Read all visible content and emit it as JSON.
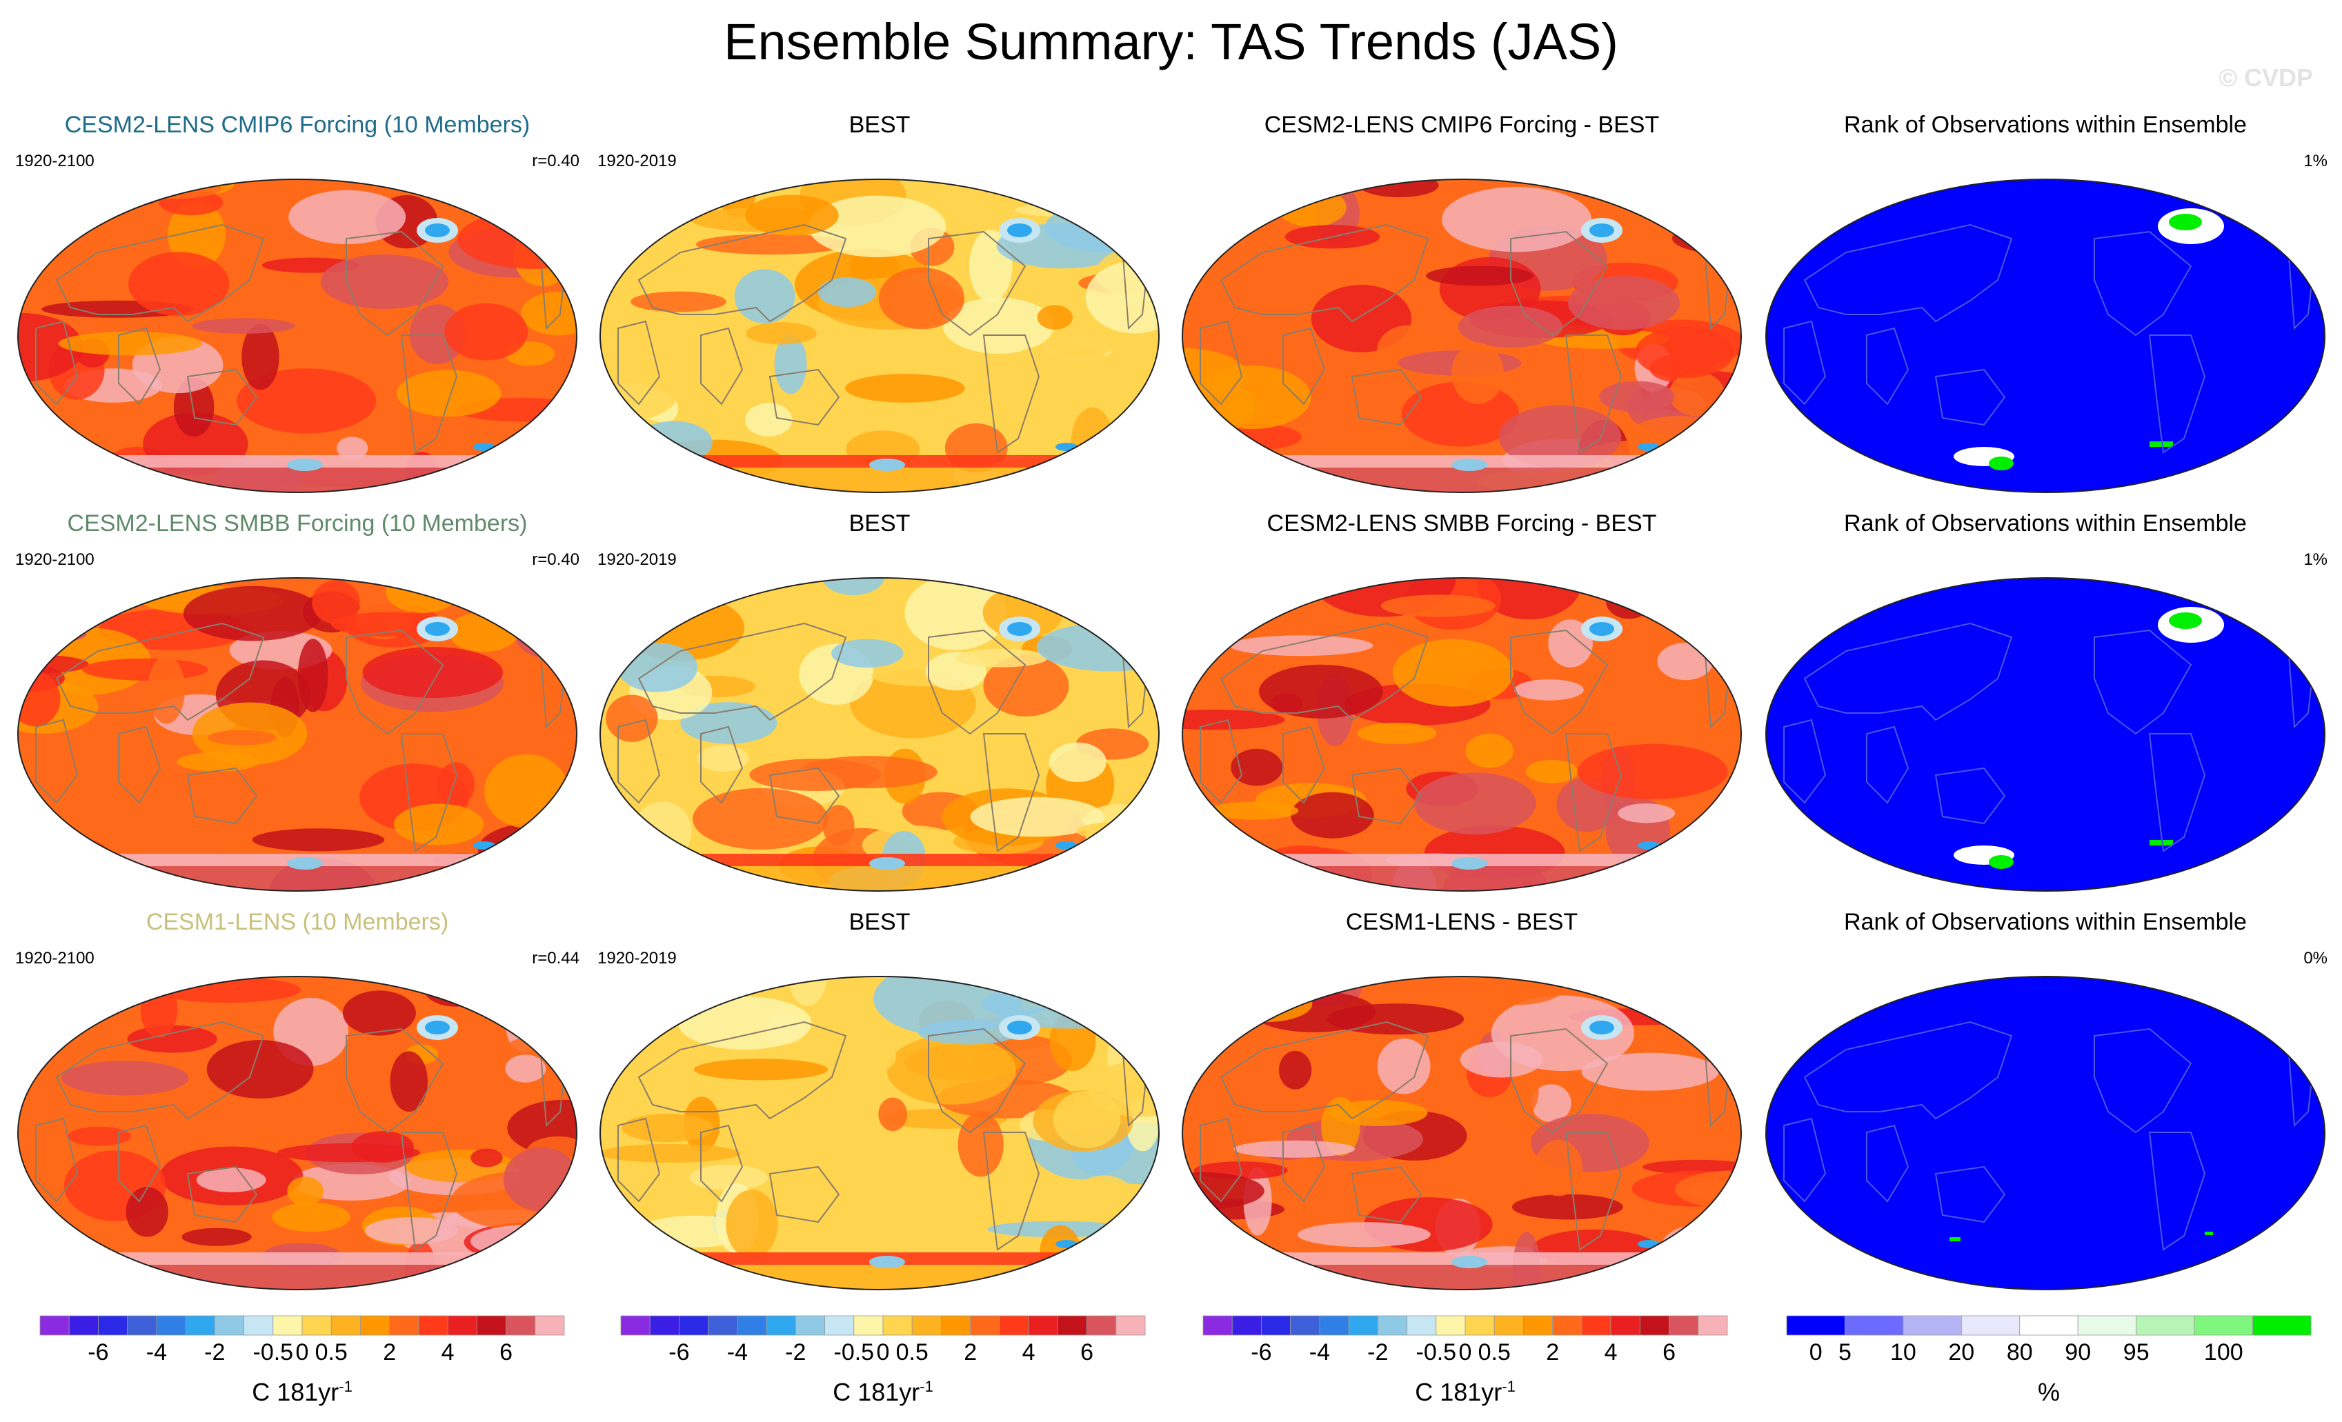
{
  "title": "Ensemble Summary: TAS Trends (JAS)",
  "watermark": "© CVDP",
  "panels": [
    {
      "title": "CESM2-LENS CMIP6 Forcing (10 Members)",
      "title_color": "#1e6b8a",
      "left": "1920-2100",
      "right": "r=0.40",
      "kind": "model",
      "variant": 0
    },
    {
      "title": "BEST",
      "title_color": "#000000",
      "left": "1920-2019",
      "right": "",
      "kind": "obs",
      "variant": 1
    },
    {
      "title": "CESM2-LENS CMIP6 Forcing - BEST",
      "title_color": "#000000",
      "left": "",
      "right": "",
      "kind": "diff",
      "variant": 2
    },
    {
      "title": "Rank of Observations within Ensemble",
      "title_color": "#000000",
      "left": "",
      "right": "1%",
      "kind": "rank",
      "variant": 3
    },
    {
      "title": "CESM2-LENS SMBB Forcing (10 Members)",
      "title_color": "#5f8a6a",
      "left": "1920-2100",
      "right": "r=0.40",
      "kind": "model",
      "variant": 4
    },
    {
      "title": "BEST",
      "title_color": "#000000",
      "left": "1920-2019",
      "right": "",
      "kind": "obs",
      "variant": 5
    },
    {
      "title": "CESM2-LENS SMBB Forcing - BEST",
      "title_color": "#000000",
      "left": "",
      "right": "",
      "kind": "diff",
      "variant": 6
    },
    {
      "title": "Rank of Observations within Ensemble",
      "title_color": "#000000",
      "left": "",
      "right": "1%",
      "kind": "rank",
      "variant": 7
    },
    {
      "title": "CESM1-LENS (10 Members)",
      "title_color": "#c8c07a",
      "left": "1920-2100",
      "right": "r=0.44",
      "kind": "model",
      "variant": 8
    },
    {
      "title": "BEST",
      "title_color": "#000000",
      "left": "1920-2019",
      "right": "",
      "kind": "obs",
      "variant": 9
    },
    {
      "title": "CESM1-LENS - BEST",
      "title_color": "#000000",
      "left": "",
      "right": "",
      "kind": "diff",
      "variant": 10
    },
    {
      "title": "Rank of Observations within Ensemble",
      "title_color": "#000000",
      "left": "",
      "right": "0%",
      "kind": "rank",
      "variant": 11
    }
  ],
  "colorbars": {
    "trend": {
      "colors": [
        "#8a2be2",
        "#3a1ee6",
        "#2a2ae8",
        "#3d5fd8",
        "#2f7fe6",
        "#30a8ef",
        "#8ecae6",
        "#c6e6f4",
        "#fdf5a8",
        "#ffd54f",
        "#ffb21f",
        "#ff9800",
        "#ff6a1a",
        "#ff3b1a",
        "#ea1f1f",
        "#c4121a",
        "#d9545c",
        "#f7b2b8"
      ],
      "tick_labels": [
        "-6",
        "-4",
        "-2",
        "-0.5",
        "0",
        "0.5",
        "2",
        "4",
        "6"
      ],
      "tick_boundaries": [
        2,
        4,
        6,
        8,
        9,
        10,
        12,
        14,
        16
      ],
      "units": "C 181yr",
      "units_sup": "-1"
    },
    "rank": {
      "colors": [
        "#0000ff",
        "#6b6bff",
        "#b5b5f5",
        "#e8e8fc",
        "#ffffff",
        "#e8fbe8",
        "#b6f5b6",
        "#7ff77f",
        "#00ee00"
      ],
      "tick_labels": [
        "0",
        "5",
        "10",
        "20",
        "80",
        "90",
        "95",
        "100"
      ],
      "tick_boundaries": [
        0.5,
        1,
        2,
        3,
        4,
        5,
        6,
        7.5
      ],
      "units": "%"
    }
  },
  "chart_data": [
    {
      "type": "heatmap",
      "title": "CESM2-LENS CMIP6 Forcing (10 Members)",
      "period": "1920-2100",
      "pattern_correlation": 0.4,
      "units": "C 181yr-1",
      "levels": [
        -8,
        -7,
        -6,
        -5,
        -4,
        -3,
        -2,
        -1,
        -0.5,
        0,
        0.5,
        1,
        2,
        3,
        4,
        5,
        6,
        7,
        8
      ]
    },
    {
      "type": "heatmap",
      "title": "BEST",
      "period": "1920-2019",
      "units": "C 181yr-1",
      "levels": [
        -8,
        -7,
        -6,
        -5,
        -4,
        -3,
        -2,
        -1,
        -0.5,
        0,
        0.5,
        1,
        2,
        3,
        4,
        5,
        6,
        7,
        8
      ]
    },
    {
      "type": "heatmap",
      "title": "CESM2-LENS CMIP6 Forcing - BEST",
      "units": "C 181yr-1",
      "levels": [
        -8,
        -7,
        -6,
        -5,
        -4,
        -3,
        -2,
        -1,
        -0.5,
        0,
        0.5,
        1,
        2,
        3,
        4,
        5,
        6,
        7,
        8
      ]
    },
    {
      "type": "heatmap",
      "title": "Rank of Observations within Ensemble",
      "value_label": "1%",
      "units": "%",
      "levels": [
        0,
        5,
        10,
        20,
        80,
        90,
        95,
        100
      ]
    },
    {
      "type": "heatmap",
      "title": "CESM2-LENS SMBB Forcing (10 Members)",
      "period": "1920-2100",
      "pattern_correlation": 0.4,
      "units": "C 181yr-1"
    },
    {
      "type": "heatmap",
      "title": "BEST",
      "period": "1920-2019",
      "units": "C 181yr-1"
    },
    {
      "type": "heatmap",
      "title": "CESM2-LENS SMBB Forcing - BEST",
      "units": "C 181yr-1"
    },
    {
      "type": "heatmap",
      "title": "Rank of Observations within Ensemble",
      "value_label": "1%",
      "units": "%"
    },
    {
      "type": "heatmap",
      "title": "CESM1-LENS (10 Members)",
      "period": "1920-2100",
      "pattern_correlation": 0.44,
      "units": "C 181yr-1"
    },
    {
      "type": "heatmap",
      "title": "BEST",
      "period": "1920-2019",
      "units": "C 181yr-1"
    },
    {
      "type": "heatmap",
      "title": "CESM1-LENS - BEST",
      "units": "C 181yr-1"
    },
    {
      "type": "heatmap",
      "title": "Rank of Observations within Ensemble",
      "value_label": "0%",
      "units": "%"
    }
  ]
}
